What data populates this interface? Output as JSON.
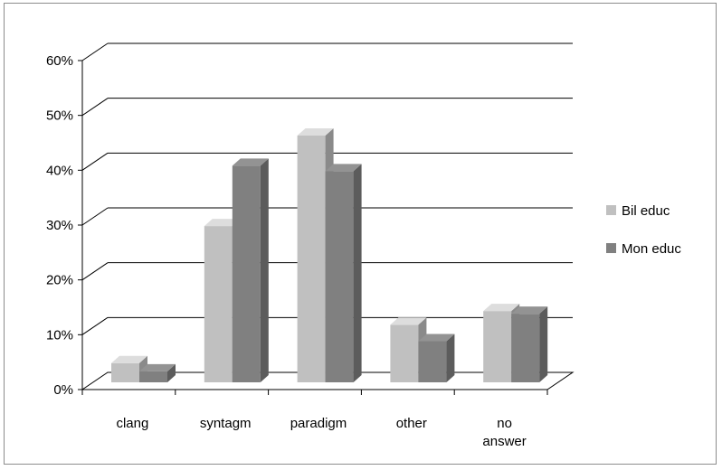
{
  "chart_data": {
    "type": "bar",
    "style": "3d-clustered-column",
    "categories": [
      "clang",
      "syntagm",
      "paradigm",
      "other",
      "no answer"
    ],
    "category_label_lines": [
      [
        "clang"
      ],
      [
        "syntagm"
      ],
      [
        "paradigm"
      ],
      [
        "other"
      ],
      [
        "no",
        "answer"
      ]
    ],
    "series": [
      {
        "name": "Bil educ",
        "values": [
          3.5,
          28.5,
          45,
          10.5,
          13
        ],
        "color": "#c0c0c0"
      },
      {
        "name": "Mon educ",
        "values": [
          2,
          39.5,
          38.5,
          7.5,
          12.5
        ],
        "color": "#808080"
      }
    ],
    "ylim": [
      0,
      60
    ],
    "yticks": [
      "0%",
      "10%",
      "20%",
      "30%",
      "40%",
      "50%",
      "60%"
    ],
    "grid": true,
    "legend_position": "right"
  }
}
